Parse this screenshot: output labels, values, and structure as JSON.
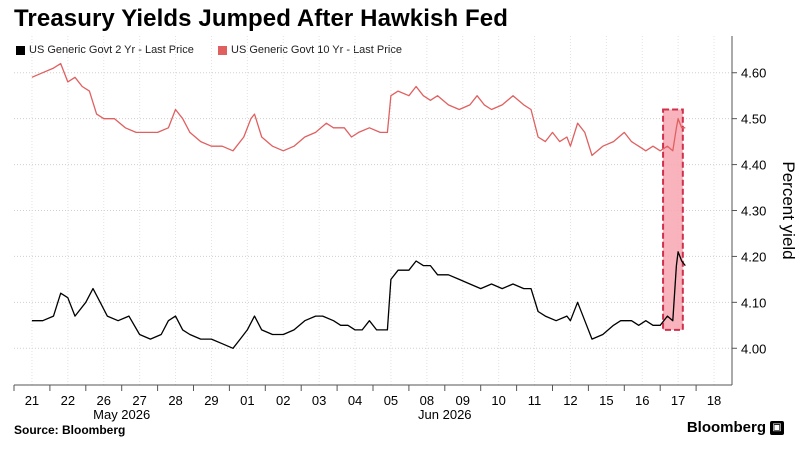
{
  "title": "Treasury Yields Jumped After Hawkish Fed",
  "source": "Source: Bloomberg",
  "brand": "Bloomberg",
  "colors": {
    "two_year": "#000000",
    "ten_year": "#e06060",
    "highlight_fill": "#f7a6b2",
    "highlight_border": "#d0304a",
    "grid": "#cfcfcf"
  },
  "chart_data": {
    "type": "line",
    "ylabel": "Percent yield",
    "ylim": [
      3.92,
      4.68
    ],
    "yticks": [
      4.0,
      4.1,
      4.2,
      4.3,
      4.4,
      4.5,
      4.6
    ],
    "ytick_labels": [
      "4.00",
      "4.10",
      "4.20",
      "4.30",
      "4.40",
      "4.50",
      "4.60"
    ],
    "x_labels": [
      "21",
      "22",
      "26",
      "27",
      "28",
      "29",
      "01",
      "02",
      "03",
      "04",
      "05",
      "08",
      "09",
      "10",
      "11",
      "12",
      "15",
      "16",
      "17",
      "18"
    ],
    "month_labels": [
      {
        "label": "May 2026",
        "at": 3
      },
      {
        "label": "Jun 2026",
        "at": 12
      }
    ],
    "highlight": {
      "from": 17.6,
      "to": 18.15,
      "ymin": 4.04,
      "ymax": 4.52
    },
    "series": [
      {
        "name": "US Generic Govt 2 Yr - Last Price",
        "color": "#000000",
        "points": [
          [
            0,
            4.06
          ],
          [
            0.3,
            4.06
          ],
          [
            0.6,
            4.07
          ],
          [
            0.8,
            4.12
          ],
          [
            1.0,
            4.11
          ],
          [
            1.2,
            4.07
          ],
          [
            1.5,
            4.1
          ],
          [
            1.7,
            4.13
          ],
          [
            1.9,
            4.1
          ],
          [
            2.1,
            4.07
          ],
          [
            2.4,
            4.06
          ],
          [
            2.7,
            4.07
          ],
          [
            3.0,
            4.03
          ],
          [
            3.3,
            4.02
          ],
          [
            3.6,
            4.03
          ],
          [
            3.8,
            4.06
          ],
          [
            4.0,
            4.07
          ],
          [
            4.2,
            4.04
          ],
          [
            4.4,
            4.03
          ],
          [
            4.7,
            4.02
          ],
          [
            5.0,
            4.02
          ],
          [
            5.3,
            4.01
          ],
          [
            5.6,
            4.0
          ],
          [
            5.8,
            4.02
          ],
          [
            6.0,
            4.04
          ],
          [
            6.2,
            4.07
          ],
          [
            6.4,
            4.04
          ],
          [
            6.7,
            4.03
          ],
          [
            7.0,
            4.03
          ],
          [
            7.3,
            4.04
          ],
          [
            7.6,
            4.06
          ],
          [
            7.9,
            4.07
          ],
          [
            8.1,
            4.07
          ],
          [
            8.4,
            4.06
          ],
          [
            8.6,
            4.05
          ],
          [
            8.8,
            4.05
          ],
          [
            9.0,
            4.04
          ],
          [
            9.2,
            4.04
          ],
          [
            9.4,
            4.06
          ],
          [
            9.6,
            4.04
          ],
          [
            9.9,
            4.04
          ],
          [
            10.0,
            4.15
          ],
          [
            10.2,
            4.17
          ],
          [
            10.5,
            4.17
          ],
          [
            10.7,
            4.19
          ],
          [
            10.9,
            4.18
          ],
          [
            11.1,
            4.18
          ],
          [
            11.3,
            4.16
          ],
          [
            11.6,
            4.16
          ],
          [
            11.9,
            4.15
          ],
          [
            12.2,
            4.14
          ],
          [
            12.5,
            4.13
          ],
          [
            12.8,
            4.14
          ],
          [
            13.1,
            4.13
          ],
          [
            13.4,
            4.14
          ],
          [
            13.7,
            4.13
          ],
          [
            13.9,
            4.13
          ],
          [
            14.1,
            4.08
          ],
          [
            14.3,
            4.07
          ],
          [
            14.6,
            4.06
          ],
          [
            14.9,
            4.07
          ],
          [
            15.0,
            4.06
          ],
          [
            15.2,
            4.1
          ],
          [
            15.4,
            4.06
          ],
          [
            15.6,
            4.02
          ],
          [
            15.9,
            4.03
          ],
          [
            16.2,
            4.05
          ],
          [
            16.4,
            4.06
          ],
          [
            16.7,
            4.06
          ],
          [
            16.9,
            4.05
          ],
          [
            17.1,
            4.06
          ],
          [
            17.3,
            4.05
          ],
          [
            17.5,
            4.05
          ],
          [
            17.7,
            4.07
          ],
          [
            17.85,
            4.06
          ],
          [
            17.95,
            4.18
          ],
          [
            18.0,
            4.21
          ],
          [
            18.1,
            4.19
          ],
          [
            18.2,
            4.18
          ]
        ]
      },
      {
        "name": "US Generic Govt 10 Yr - Last Price",
        "color": "#e06060",
        "points": [
          [
            0,
            4.59
          ],
          [
            0.3,
            4.6
          ],
          [
            0.6,
            4.61
          ],
          [
            0.8,
            4.62
          ],
          [
            1.0,
            4.58
          ],
          [
            1.2,
            4.59
          ],
          [
            1.4,
            4.57
          ],
          [
            1.6,
            4.56
          ],
          [
            1.8,
            4.51
          ],
          [
            2.0,
            4.5
          ],
          [
            2.3,
            4.5
          ],
          [
            2.6,
            4.48
          ],
          [
            2.9,
            4.47
          ],
          [
            3.2,
            4.47
          ],
          [
            3.5,
            4.47
          ],
          [
            3.8,
            4.48
          ],
          [
            4.0,
            4.52
          ],
          [
            4.2,
            4.5
          ],
          [
            4.4,
            4.47
          ],
          [
            4.7,
            4.45
          ],
          [
            5.0,
            4.44
          ],
          [
            5.3,
            4.44
          ],
          [
            5.6,
            4.43
          ],
          [
            5.9,
            4.46
          ],
          [
            6.1,
            4.5
          ],
          [
            6.2,
            4.51
          ],
          [
            6.4,
            4.46
          ],
          [
            6.7,
            4.44
          ],
          [
            7.0,
            4.43
          ],
          [
            7.3,
            4.44
          ],
          [
            7.6,
            4.46
          ],
          [
            7.9,
            4.47
          ],
          [
            8.2,
            4.49
          ],
          [
            8.4,
            4.48
          ],
          [
            8.7,
            4.48
          ],
          [
            8.9,
            4.46
          ],
          [
            9.1,
            4.47
          ],
          [
            9.4,
            4.48
          ],
          [
            9.7,
            4.47
          ],
          [
            9.9,
            4.47
          ],
          [
            10.0,
            4.55
          ],
          [
            10.2,
            4.56
          ],
          [
            10.5,
            4.55
          ],
          [
            10.7,
            4.57
          ],
          [
            10.9,
            4.55
          ],
          [
            11.1,
            4.54
          ],
          [
            11.3,
            4.55
          ],
          [
            11.6,
            4.53
          ],
          [
            11.9,
            4.52
          ],
          [
            12.2,
            4.53
          ],
          [
            12.4,
            4.55
          ],
          [
            12.6,
            4.53
          ],
          [
            12.8,
            4.52
          ],
          [
            13.1,
            4.53
          ],
          [
            13.4,
            4.55
          ],
          [
            13.7,
            4.53
          ],
          [
            13.9,
            4.52
          ],
          [
            14.1,
            4.46
          ],
          [
            14.3,
            4.45
          ],
          [
            14.5,
            4.47
          ],
          [
            14.7,
            4.45
          ],
          [
            14.9,
            4.46
          ],
          [
            15.0,
            4.44
          ],
          [
            15.2,
            4.49
          ],
          [
            15.4,
            4.47
          ],
          [
            15.6,
            4.42
          ],
          [
            15.9,
            4.44
          ],
          [
            16.2,
            4.45
          ],
          [
            16.5,
            4.47
          ],
          [
            16.7,
            4.45
          ],
          [
            16.9,
            4.44
          ],
          [
            17.1,
            4.43
          ],
          [
            17.3,
            4.44
          ],
          [
            17.5,
            4.43
          ],
          [
            17.7,
            4.44
          ],
          [
            17.85,
            4.43
          ],
          [
            17.95,
            4.48
          ],
          [
            18.0,
            4.5
          ],
          [
            18.1,
            4.48
          ],
          [
            18.2,
            4.48
          ]
        ]
      }
    ]
  }
}
